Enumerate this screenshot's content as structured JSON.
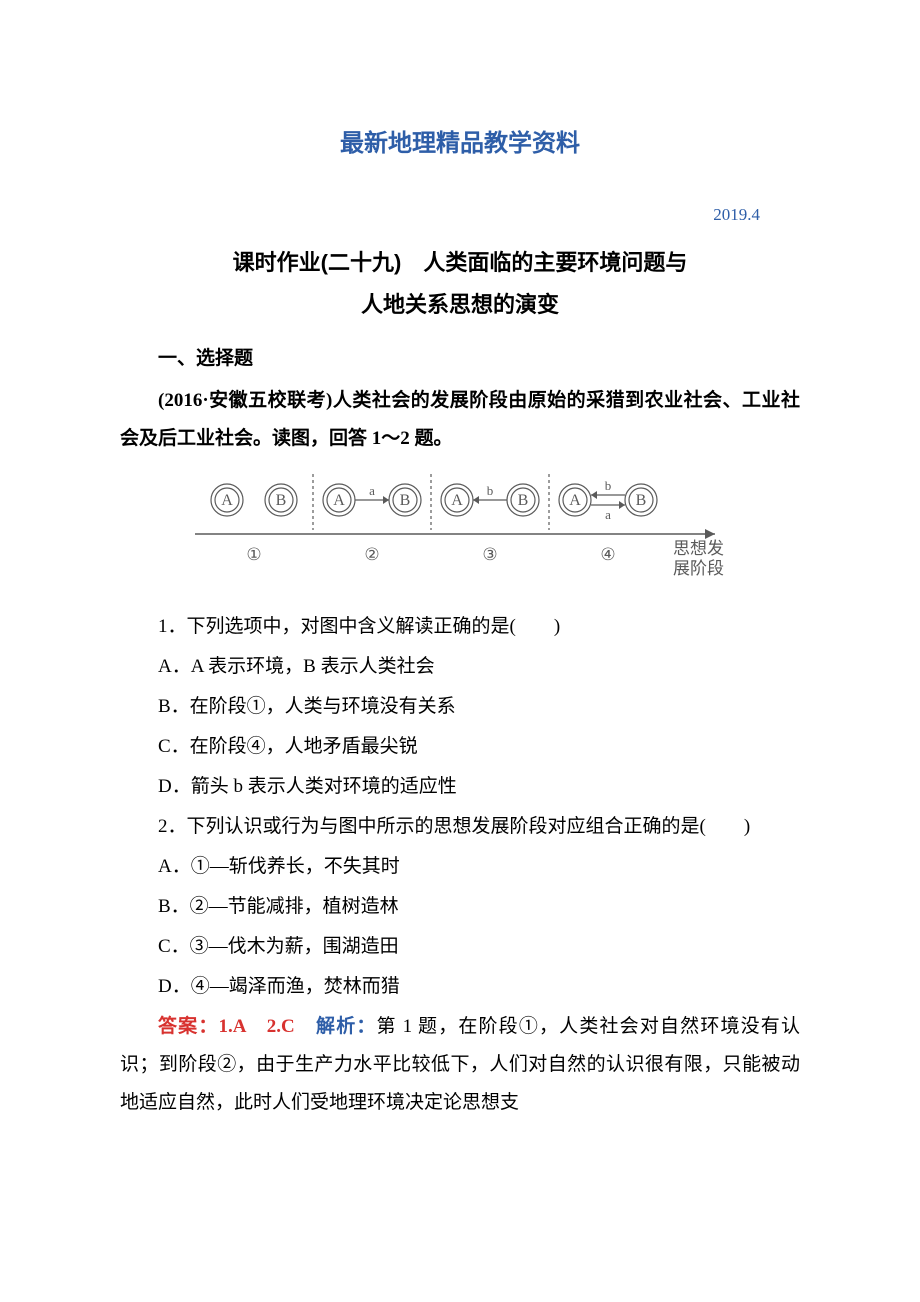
{
  "header": {
    "banner": "最新地理精品教学资料",
    "date": "2019.4",
    "title_line1": "课时作业(二十九)　人类面临的主要环境问题与",
    "title_line2": "人地关系思想的演变"
  },
  "section1": {
    "heading": "一、选择题",
    "stem": "(2016·安徽五校联考)人类社会的发展阶段由原始的采猎到农业社会、工业社会及后工业社会。读图，回答 1～2 题。"
  },
  "diagram": {
    "node_label_A": "A",
    "node_label_B": "B",
    "arrow_a": "a",
    "arrow_b": "b",
    "stage1": "①",
    "stage2": "②",
    "stage3": "③",
    "stage4": "④",
    "axis_label_1": "思想发",
    "axis_label_2": "展阶段",
    "node_radius": 16,
    "inner_radius": 12,
    "stroke_color": "#5a5a5a",
    "text_color": "#5a5a5a",
    "font_size": 16,
    "label_font_size": 13,
    "stage_font_size": 17,
    "bg": "#ffffff",
    "rule_color": "#5a5a5a",
    "rule_dash": "3,3"
  },
  "q1": {
    "text": "1．下列选项中，对图中含义解读正确的是(　　)",
    "A": "A．A 表示环境，B 表示人类社会",
    "B": "B．在阶段①，人类与环境没有关系",
    "C": "C．在阶段④，人地矛盾最尖锐",
    "D": "D．箭头 b 表示人类对环境的适应性"
  },
  "q2": {
    "text": "2．下列认识或行为与图中所示的思想发展阶段对应组合正确的是(　　)",
    "A": "A．①—斩伐养长，不失其时",
    "B": "B．②—节能减排，植树造林",
    "C": "C．③—伐木为薪，围湖造田",
    "D": "D．④—竭泽而渔，焚林而猎"
  },
  "answer": {
    "label": "答案：",
    "ans": "1.A　2.C　",
    "jiexi_label": "解析：",
    "body": "第 1 题，在阶段①，人类社会对自然环境没有认识；到阶段②，由于生产力水平比较低下，人们对自然的认识很有限，只能被动地适应自然，此时人们受地理环境决定论思想支"
  }
}
